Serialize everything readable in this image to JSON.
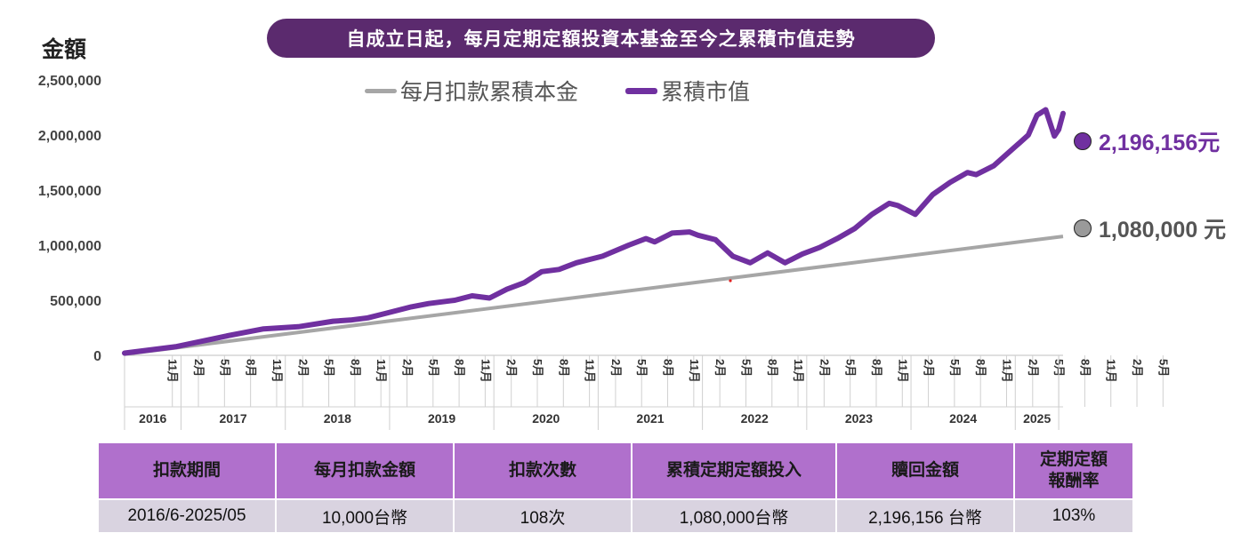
{
  "title": "自成立日起，每月定期定額投資本基金至今之累積市值走勢",
  "y_axis_label": "金額",
  "colors": {
    "principal": "#a6a6a6",
    "market": "#7030a0",
    "title_bg": "#5b2a6e",
    "header_bg": "#b070cc",
    "row_bg": "#d9d3e0"
  },
  "legend": {
    "principal": "每月扣款累積本金",
    "market": "累積市值"
  },
  "end_labels": {
    "market": "2,196,156元",
    "principal": "1,080,000 元"
  },
  "table": {
    "headers": [
      "扣款期間",
      "每月扣款金額",
      "扣款次數",
      "累積定期定額投入",
      "贖回金額",
      "定期定額\n報酬率"
    ],
    "row": [
      "2016/6-2025/05",
      "10,000台幣",
      "108次",
      "1,080,000台幣",
      "2,196,156 台幣",
      "103%"
    ]
  },
  "chart_data": {
    "type": "line",
    "title": "自成立日起，每月定期定額投資本基金至今之累積市值走勢",
    "ylabel": "金額",
    "ylim": [
      0,
      2500000
    ],
    "yticks": [
      0,
      500000,
      1000000,
      1500000,
      2000000,
      2500000
    ],
    "ytick_labels": [
      "0",
      "500,000",
      "1,000,000",
      "1,500,000",
      "2,000,000",
      "2,500,000"
    ],
    "x_start": "2016/6",
    "x_end": "2025/5",
    "month_tick_labels": [
      "11月",
      "2月",
      "5月",
      "8月",
      "11月",
      "2月",
      "5月",
      "8月",
      "11月",
      "2月",
      "5月",
      "8月",
      "11月",
      "2月",
      "5月",
      "8月",
      "11月",
      "2月",
      "5月",
      "8月",
      "11月",
      "2月",
      "5月",
      "8月",
      "11月",
      "2月",
      "5月",
      "8月",
      "11月",
      "2月",
      "5月",
      "8月",
      "11月",
      "2月",
      "5月",
      "8月",
      "11月",
      "2月",
      "5月"
    ],
    "year_labels": [
      "2016",
      "2017",
      "2018",
      "2019",
      "2020",
      "2021",
      "2022",
      "2023",
      "2024",
      "2025"
    ],
    "series": [
      {
        "name": "每月扣款累積本金",
        "start": 10000,
        "end": 1080000,
        "points": 108
      },
      {
        "name": "累積市值",
        "values": [
          [
            0,
            20000
          ],
          [
            6,
            80000
          ],
          [
            12,
            180000
          ],
          [
            16,
            240000
          ],
          [
            20,
            260000
          ],
          [
            24,
            310000
          ],
          [
            26,
            320000
          ],
          [
            28,
            340000
          ],
          [
            30,
            380000
          ],
          [
            33,
            440000
          ],
          [
            35,
            470000
          ],
          [
            38,
            500000
          ],
          [
            40,
            540000
          ],
          [
            42,
            520000
          ],
          [
            44,
            600000
          ],
          [
            46,
            660000
          ],
          [
            48,
            760000
          ],
          [
            50,
            780000
          ],
          [
            52,
            840000
          ],
          [
            55,
            900000
          ],
          [
            58,
            1000000
          ],
          [
            60,
            1060000
          ],
          [
            61,
            1030000
          ],
          [
            63,
            1110000
          ],
          [
            65,
            1120000
          ],
          [
            66,
            1090000
          ],
          [
            68,
            1050000
          ],
          [
            70,
            900000
          ],
          [
            72,
            840000
          ],
          [
            74,
            930000
          ],
          [
            76,
            840000
          ],
          [
            78,
            920000
          ],
          [
            80,
            980000
          ],
          [
            82,
            1060000
          ],
          [
            84,
            1150000
          ],
          [
            86,
            1280000
          ],
          [
            88,
            1380000
          ],
          [
            89,
            1360000
          ],
          [
            91,
            1280000
          ],
          [
            93,
            1460000
          ],
          [
            95,
            1570000
          ],
          [
            97,
            1660000
          ],
          [
            98,
            1640000
          ],
          [
            100,
            1720000
          ],
          [
            102,
            1860000
          ],
          [
            103,
            1930000
          ],
          [
            104,
            2000000
          ],
          [
            105,
            2180000
          ],
          [
            106,
            2230000
          ],
          [
            107,
            1990000
          ],
          [
            107.5,
            2050000
          ],
          [
            108,
            2196156
          ]
        ]
      }
    ]
  }
}
